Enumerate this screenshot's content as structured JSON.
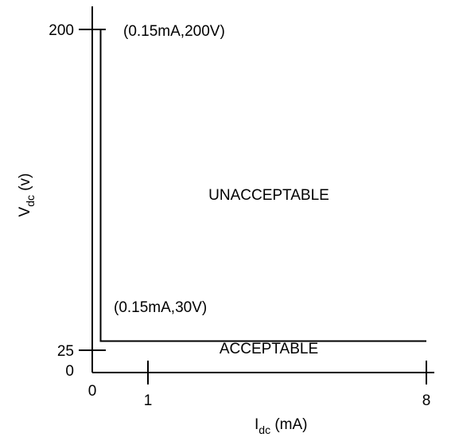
{
  "chart_data": {
    "type": "line",
    "title": "",
    "xlabel": {
      "main": "I",
      "sub": "dc",
      "unit": "(mA)"
    },
    "ylabel": {
      "main": "V",
      "sub": "dc",
      "unit": "(v)"
    },
    "x_ticks": [
      "0",
      "1",
      "8"
    ],
    "y_ticks": [
      "0",
      "25",
      "200"
    ],
    "series": [
      {
        "points": [
          {
            "x": 0.15,
            "y": 200
          },
          {
            "x": 0.15,
            "y": 30
          },
          {
            "x": 8,
            "y": 30
          }
        ]
      }
    ],
    "annotations": {
      "upper_point": "(0.15mA,200V)",
      "lower_point": "(0.15mA,30V)",
      "region_above": "UNACCEPTABLE",
      "region_below": "ACCEPTABLE"
    },
    "line_color": "#000000"
  }
}
